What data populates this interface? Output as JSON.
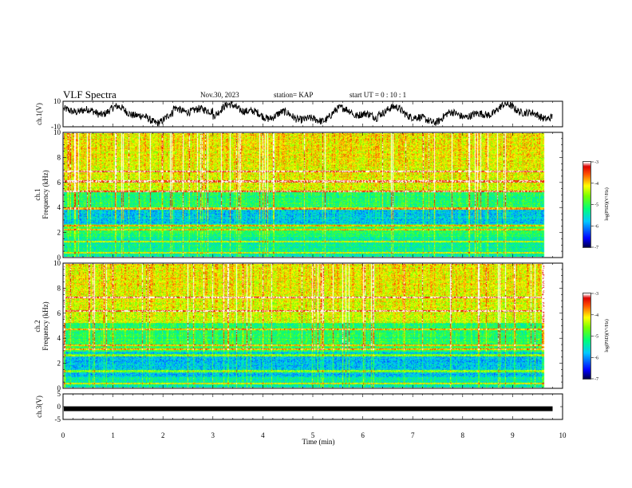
{
  "header": {
    "title": "VLF Spectra",
    "date": "Nov.30, 2023",
    "station": "station= KAP",
    "start": "start  UT  =   0  : 10 : 1"
  },
  "chart_data": [
    {
      "type": "line",
      "name": "ch1-waveform",
      "ylabel": "ch.1(V)",
      "ylim": [
        -10,
        10
      ],
      "yticks": [
        "10",
        "-10"
      ],
      "xlim": [
        0,
        10
      ],
      "trace_extent_min": 9.8
    },
    {
      "type": "heatmap",
      "name": "ch1-spectrogram",
      "ylabel": "ch.1\nFrequency  (kHz)",
      "ylabel_line1": "ch.1",
      "ylabel_line2": "Frequency  (kHz)",
      "ylim": [
        0,
        10
      ],
      "yticks": [
        0,
        2,
        4,
        6,
        8,
        10
      ],
      "xlim": [
        0,
        10
      ],
      "colorbar": {
        "label": "log(PSD)(V²/Hz)",
        "ticks": [
          -3,
          -4,
          -5,
          -6,
          -7
        ],
        "range": [
          -7,
          -3
        ]
      },
      "persistent_bands_khz": [
        0.3,
        1.2,
        2.2,
        2.5,
        3.9,
        5.3,
        6.1,
        6.9
      ],
      "data_extent_min": 9.8
    },
    {
      "type": "heatmap",
      "name": "ch2-spectrogram",
      "ylabel_line1": "ch.2",
      "ylabel_line2": "Frequency  (kHz)",
      "ylim": [
        0,
        10
      ],
      "yticks": [
        0,
        2,
        4,
        6,
        8,
        10
      ],
      "xlim": [
        0,
        10
      ],
      "colorbar": {
        "label": "log(PSD)(V²/Hz)",
        "ticks": [
          -3,
          -4,
          -5,
          -6,
          -7
        ],
        "range": [
          -7,
          -3
        ]
      },
      "persistent_bands_khz": [
        0.3,
        1.3,
        2.6,
        3.1,
        3.4,
        4.7,
        6.2,
        7.3
      ],
      "data_extent_min": 9.8
    },
    {
      "type": "line",
      "name": "ch3-waveform",
      "ylabel": "ch.3(V)",
      "ylim": [
        -5,
        5
      ],
      "yticks": [
        "5",
        "0",
        "-5"
      ],
      "xlim": [
        0,
        10
      ],
      "level": -0.8,
      "trace_extent_min": 9.8
    }
  ],
  "xaxis": {
    "label": "Time  (min)",
    "ticks": [
      "0",
      "1",
      "2",
      "3",
      "4",
      "5",
      "6",
      "7",
      "8",
      "9",
      "10"
    ]
  },
  "colors": {
    "trace": "#000000",
    "frame": "#000000"
  }
}
